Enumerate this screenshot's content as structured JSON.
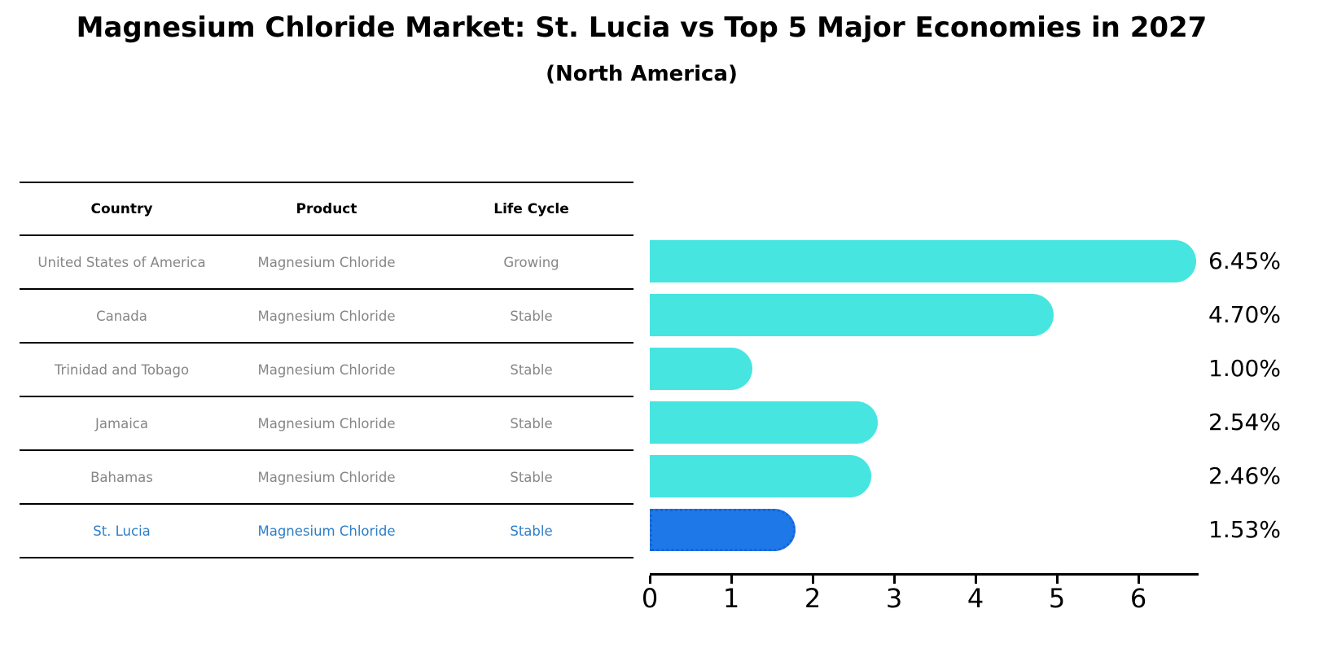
{
  "title": "Magnesium Chloride Market: St. Lucia vs Top 5 Major Economies in 2027",
  "subtitle": "(North America)",
  "table": {
    "headers": [
      "Country",
      "Product",
      "Life Cycle"
    ],
    "rows": [
      {
        "country": "United States of America",
        "product": "Magnesium Chloride",
        "life_cycle": "Growing",
        "highlight": false
      },
      {
        "country": "Canada",
        "product": "Magnesium Chloride",
        "life_cycle": "Stable",
        "highlight": false
      },
      {
        "country": "Trinidad and Tobago",
        "product": "Magnesium Chloride",
        "life_cycle": "Stable",
        "highlight": false
      },
      {
        "country": "Jamaica",
        "product": "Magnesium Chloride",
        "life_cycle": "Stable",
        "highlight": false
      },
      {
        "country": "Bahamas",
        "product": "Magnesium Chloride",
        "life_cycle": "Stable",
        "highlight": false
      },
      {
        "country": "St. Lucia",
        "product": "Magnesium Chloride",
        "life_cycle": "Stable",
        "highlight": true
      }
    ]
  },
  "chart_data": {
    "type": "bar",
    "orientation": "horizontal",
    "title": "Magnesium Chloride Market: St. Lucia vs Top 5 Major Economies in 2027 (North America)",
    "categories": [
      "United States of America",
      "Canada",
      "Trinidad and Tobago",
      "Jamaica",
      "Bahamas",
      "St. Lucia"
    ],
    "values": [
      6.45,
      4.7,
      1.0,
      2.54,
      2.46,
      1.53
    ],
    "value_labels": [
      "6.45%",
      "4.70%",
      "1.00%",
      "2.54%",
      "2.46%",
      "1.53%"
    ],
    "xticks": [
      "0",
      "1",
      "2",
      "3",
      "4",
      "5",
      "6"
    ],
    "xlim": [
      0,
      6.72
    ],
    "grid": false,
    "legend": false,
    "highlight_index": 5
  },
  "colors": {
    "bar": "#47e5df",
    "highlight_bar": "#1e78e8",
    "highlight_bar_border": "#1565d6",
    "highlight_text": "#2d7ec8",
    "table_text": "#868686",
    "axis": "#000000"
  }
}
